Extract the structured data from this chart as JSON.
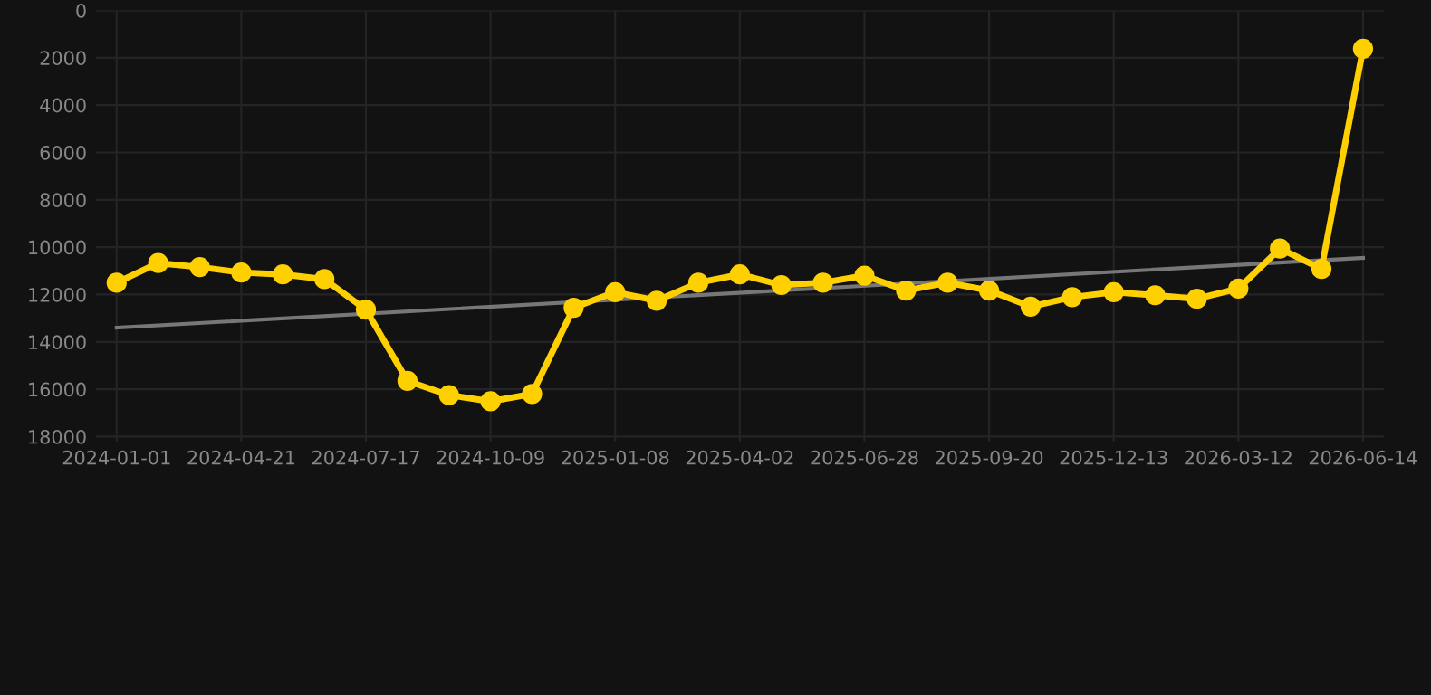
{
  "chart_data": {
    "type": "line",
    "categories": [
      "2024-01-01",
      null,
      null,
      "2024-04-21",
      null,
      null,
      "2024-07-17",
      null,
      null,
      "2024-10-09",
      null,
      null,
      "2025-01-08",
      null,
      null,
      "2025-04-02",
      null,
      null,
      "2025-06-28",
      null,
      null,
      "2025-09-20",
      null,
      null,
      "2025-12-13",
      null,
      null,
      "2026-03-12",
      null,
      null,
      "2026-06-14"
    ],
    "series": [
      {
        "color": "#ffd000",
        "marker": "circle",
        "values": [
          11500,
          10670,
          10840,
          11070,
          11150,
          11350,
          12640,
          15650,
          16250,
          16510,
          16200,
          12560,
          11900,
          12260,
          11500,
          11150,
          11600,
          11500,
          11200,
          11830,
          11500,
          11830,
          12510,
          12110,
          11900,
          12030,
          12180,
          11750,
          10060,
          10920,
          1620
        ]
      },
      {
        "color": "#777777",
        "marker": "none",
        "values": [
          13400,
          null,
          null,
          null,
          null,
          null,
          null,
          null,
          null,
          null,
          null,
          null,
          null,
          null,
          null,
          null,
          null,
          null,
          null,
          null,
          null,
          null,
          null,
          null,
          null,
          null,
          null,
          null,
          null,
          null,
          10450
        ]
      }
    ],
    "ylim": [
      18200,
      0
    ],
    "yticks": [
      0,
      2000,
      4000,
      6000,
      8000,
      10000,
      12000,
      14000,
      16000,
      18000
    ],
    "grid": true
  }
}
